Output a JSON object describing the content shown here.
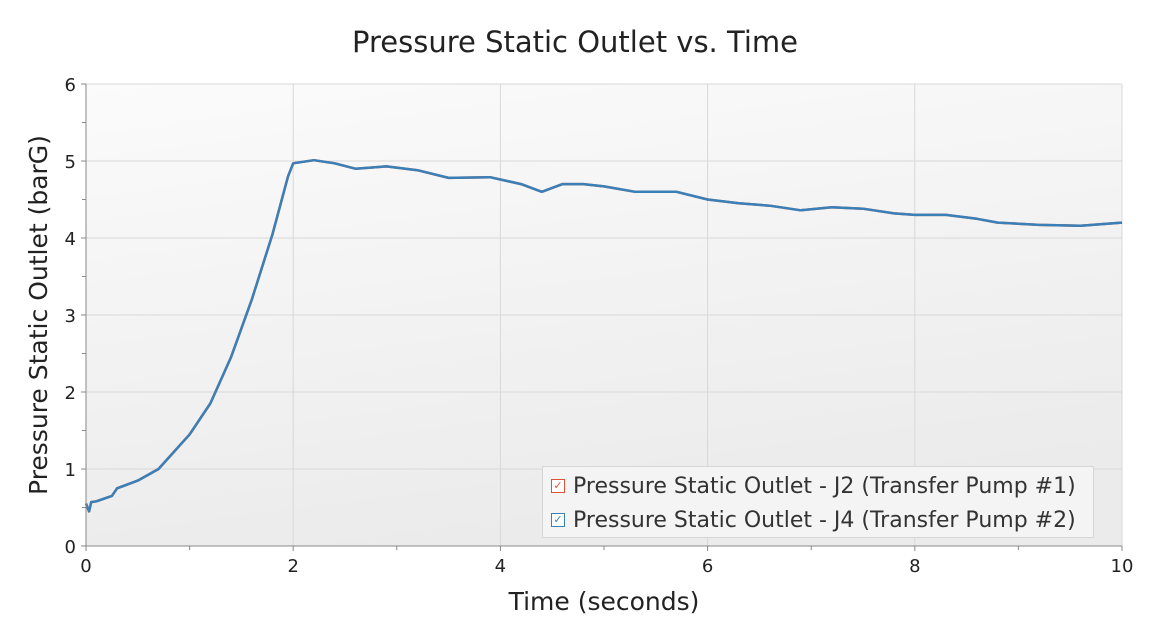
{
  "chart_data": {
    "type": "line",
    "title": "Pressure Static Outlet vs. Time",
    "xlabel": "Time (seconds)",
    "ylabel": "Pressure Static Outlet (barG)",
    "xlim": [
      0,
      10
    ],
    "ylim": [
      0,
      6
    ],
    "xticks": [
      "0",
      "2",
      "4",
      "6",
      "8",
      "10"
    ],
    "yticks": [
      "0",
      "1",
      "2",
      "3",
      "4",
      "5",
      "6"
    ],
    "grid": true,
    "legend_position": "bottom-right",
    "x": [
      0,
      0.03,
      0.05,
      0.1,
      0.25,
      0.3,
      0.5,
      0.7,
      1.0,
      1.2,
      1.4,
      1.6,
      1.8,
      1.95,
      2.0,
      2.2,
      2.4,
      2.6,
      2.9,
      3.2,
      3.5,
      3.9,
      4.2,
      4.4,
      4.6,
      4.8,
      5.0,
      5.3,
      5.7,
      6.0,
      6.3,
      6.6,
      6.9,
      7.2,
      7.5,
      7.8,
      8.0,
      8.3,
      8.6,
      8.8,
      9.2,
      9.6,
      10
    ],
    "series": [
      {
        "name": "Pressure Static Outlet - J2 (Transfer Pump #1)",
        "color": "#e0513a",
        "values": [
          0.55,
          0.45,
          0.57,
          0.58,
          0.65,
          0.75,
          0.85,
          1.0,
          1.45,
          1.85,
          2.45,
          3.2,
          4.05,
          4.8,
          4.97,
          5.01,
          4.97,
          4.9,
          4.93,
          4.88,
          4.78,
          4.79,
          4.7,
          4.6,
          4.7,
          4.7,
          4.67,
          4.6,
          4.6,
          4.5,
          4.45,
          4.42,
          4.36,
          4.4,
          4.38,
          4.32,
          4.3,
          4.3,
          4.25,
          4.2,
          4.17,
          4.16,
          4.2
        ]
      },
      {
        "name": "Pressure Static Outlet - J4 (Transfer Pump #2)",
        "color": "#3a80b8",
        "values": [
          0.55,
          0.45,
          0.57,
          0.58,
          0.65,
          0.75,
          0.85,
          1.0,
          1.45,
          1.85,
          2.45,
          3.2,
          4.05,
          4.8,
          4.97,
          5.01,
          4.97,
          4.9,
          4.93,
          4.88,
          4.78,
          4.79,
          4.7,
          4.6,
          4.7,
          4.7,
          4.67,
          4.6,
          4.6,
          4.5,
          4.45,
          4.42,
          4.36,
          4.4,
          4.38,
          4.32,
          4.3,
          4.3,
          4.25,
          4.2,
          4.17,
          4.16,
          4.2
        ]
      }
    ]
  }
}
